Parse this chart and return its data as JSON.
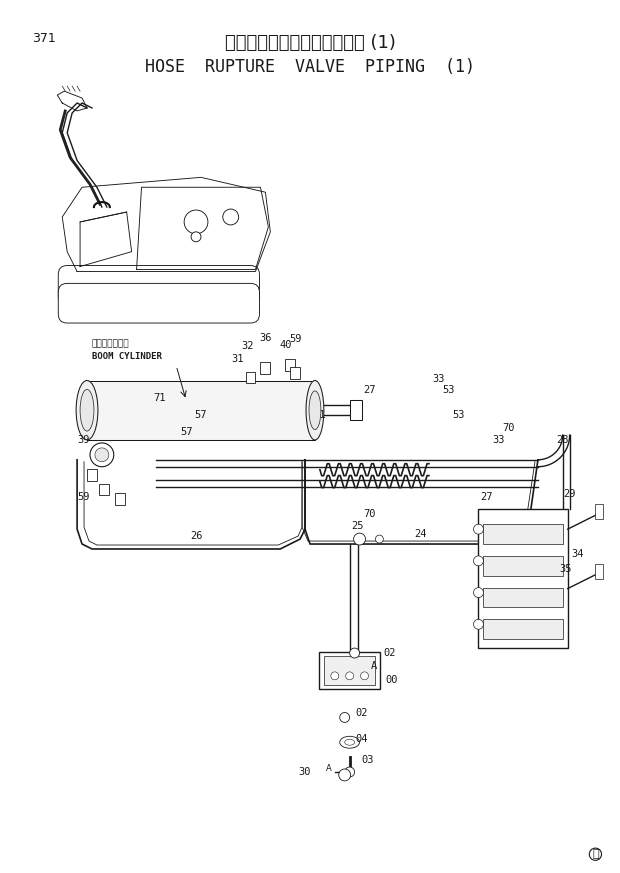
{
  "page_number": "371",
  "title_japanese": "ホースラプチャーバルブ配管 (1)",
  "title_english": "HOSE  RUPTURE  VALVE  PIPING  (1)",
  "copyright_mark": "Ⓜ",
  "bg_color": "#ffffff",
  "line_color": "#1a1a1a",
  "text_color": "#1a1a1a",
  "title_fontsize": 13,
  "subtitle_fontsize": 12,
  "label_fontsize": 7.5,
  "page_fontsize": 9,
  "boom_cylinder_label_jp": "ブームシリンダ",
  "boom_cylinder_label_en": "BOOM CYLINDER"
}
